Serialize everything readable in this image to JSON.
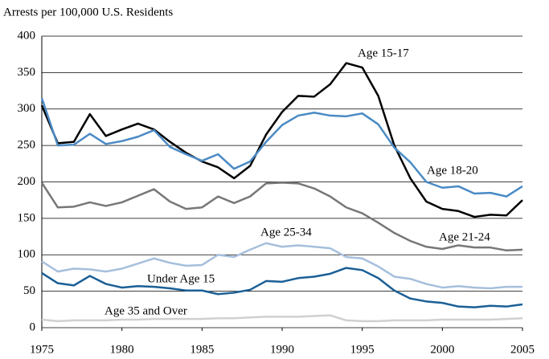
{
  "chart_data": {
    "type": "line",
    "title": "Arrests per 100,000 U.S. Residents",
    "x": [
      1975,
      1976,
      1977,
      1978,
      1979,
      1980,
      1981,
      1982,
      1983,
      1984,
      1985,
      1986,
      1987,
      1988,
      1989,
      1990,
      1991,
      1992,
      1993,
      1994,
      1995,
      1996,
      1997,
      1998,
      1999,
      2000,
      2001,
      2002,
      2003,
      2004,
      2005
    ],
    "xlim": [
      1975,
      2005
    ],
    "xticks": [
      1975,
      1980,
      1985,
      1990,
      1995,
      2000,
      2005
    ],
    "ylim": [
      0,
      400
    ],
    "yticks": [
      0,
      50,
      100,
      150,
      200,
      250,
      300,
      350,
      400
    ],
    "grid": true,
    "series": [
      {
        "name": "Age 15-17",
        "color": "#000000",
        "values": [
          305,
          253,
          255,
          293,
          263,
          272,
          280,
          272,
          255,
          240,
          228,
          220,
          205,
          222,
          265,
          296,
          318,
          317,
          334,
          363,
          357,
          318,
          250,
          205,
          173,
          163,
          160,
          152,
          155,
          154,
          175
        ]
      },
      {
        "name": "Age 18-20",
        "color": "#4a8ac4",
        "values": [
          315,
          250,
          251,
          266,
          252,
          256,
          262,
          271,
          248,
          238,
          229,
          238,
          218,
          228,
          255,
          278,
          291,
          295,
          291,
          290,
          294,
          279,
          247,
          227,
          200,
          192,
          194,
          184,
          185,
          180,
          194
        ]
      },
      {
        "name": "Age 21-24",
        "color": "#777777",
        "values": [
          199,
          165,
          166,
          172,
          167,
          172,
          181,
          190,
          173,
          163,
          165,
          180,
          171,
          180,
          198,
          199,
          198,
          191,
          180,
          165,
          157,
          144,
          130,
          119,
          111,
          108,
          113,
          110,
          110,
          106,
          107
        ]
      },
      {
        "name": "Age 25-34",
        "color": "#a6bfdc",
        "values": [
          91,
          77,
          81,
          80,
          77,
          81,
          88,
          95,
          89,
          85,
          86,
          100,
          97,
          107,
          116,
          111,
          113,
          111,
          109,
          97,
          95,
          84,
          70,
          67,
          60,
          55,
          57,
          55,
          54,
          56,
          56
        ]
      },
      {
        "name": "Under Age 15",
        "color": "#1a5f96",
        "values": [
          75,
          61,
          58,
          71,
          60,
          55,
          57,
          56,
          54,
          51,
          51,
          46,
          48,
          52,
          64,
          63,
          68,
          70,
          74,
          82,
          79,
          68,
          51,
          40,
          36,
          34,
          29,
          28,
          30,
          29,
          32
        ]
      },
      {
        "name": "Age 35 and Over",
        "color": "#d0d0d0",
        "values": [
          11,
          9,
          10,
          10,
          10,
          11,
          11,
          12,
          12,
          12,
          12,
          13,
          13,
          14,
          15,
          15,
          15,
          16,
          17,
          10,
          9,
          9,
          10,
          10,
          10,
          11,
          11,
          11,
          11,
          12,
          13
        ]
      }
    ]
  }
}
